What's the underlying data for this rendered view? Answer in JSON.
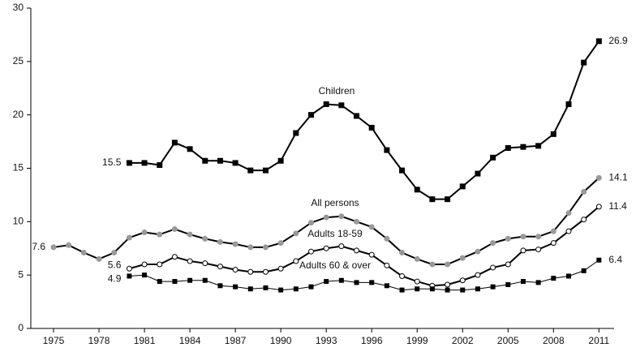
{
  "chart_data": {
    "type": "line",
    "x": [
      1975,
      1976,
      1977,
      1978,
      1979,
      1980,
      1981,
      1982,
      1983,
      1984,
      1985,
      1986,
      1987,
      1988,
      1989,
      1990,
      1991,
      1992,
      1993,
      1994,
      1995,
      1996,
      1997,
      1998,
      1999,
      2000,
      2001,
      2002,
      2003,
      2004,
      2005,
      2006,
      2007,
      2008,
      2009,
      2010,
      2011
    ],
    "xlim": [
      1973.5,
      2012
    ],
    "xticks": [
      1975,
      1978,
      1981,
      1984,
      1987,
      1990,
      1993,
      1996,
      1999,
      2002,
      2005,
      2008,
      2011
    ],
    "ylim": [
      0,
      30
    ],
    "yticks": [
      0,
      5,
      10,
      15,
      20,
      25,
      30
    ],
    "series": [
      {
        "name": "Children",
        "color": "#000000",
        "marker": "square",
        "values": [
          null,
          null,
          null,
          null,
          null,
          15.5,
          15.5,
          15.3,
          17.4,
          16.8,
          15.7,
          15.7,
          15.5,
          14.8,
          14.8,
          15.7,
          18.3,
          20.0,
          21.0,
          20.9,
          19.9,
          18.8,
          16.7,
          14.8,
          13.0,
          12.1,
          12.1,
          13.3,
          14.5,
          16.0,
          16.9,
          17.0,
          17.1,
          18.2,
          21.0,
          24.9,
          26.9
        ]
      },
      {
        "name": "All persons",
        "color": "#999999",
        "marker": "circle",
        "values": [
          7.6,
          7.8,
          7.1,
          6.5,
          7.1,
          8.5,
          9.0,
          8.8,
          9.3,
          8.8,
          8.4,
          8.1,
          7.9,
          7.6,
          7.6,
          8.0,
          8.9,
          9.9,
          10.4,
          10.5,
          10.0,
          9.5,
          8.4,
          7.1,
          6.5,
          6.0,
          6.0,
          6.6,
          7.2,
          8.0,
          8.4,
          8.6,
          8.6,
          9.1,
          10.8,
          12.8,
          14.1
        ]
      },
      {
        "name": "Adults 18-59",
        "color": "#ffffff",
        "marker": "circle",
        "values": [
          null,
          null,
          null,
          null,
          null,
          5.6,
          6.0,
          6.0,
          6.7,
          6.3,
          6.1,
          5.8,
          5.5,
          5.3,
          5.3,
          5.6,
          6.3,
          7.2,
          7.5,
          7.7,
          7.3,
          6.9,
          5.9,
          4.9,
          4.4,
          4.0,
          4.1,
          4.5,
          5.0,
          5.7,
          6.0,
          7.3,
          7.4,
          8.0,
          9.1,
          10.2,
          11.4
        ]
      },
      {
        "name": "Adults 60 & over",
        "color": "#000000",
        "marker": "small-square",
        "values": [
          null,
          null,
          null,
          null,
          null,
          4.9,
          5.0,
          4.4,
          4.4,
          4.5,
          4.5,
          4.0,
          3.9,
          3.7,
          3.8,
          3.6,
          3.7,
          3.9,
          4.4,
          4.5,
          4.3,
          4.3,
          4.0,
          3.6,
          3.7,
          3.7,
          3.6,
          3.6,
          3.7,
          3.9,
          4.1,
          4.4,
          4.3,
          4.7,
          4.9,
          5.4,
          6.4
        ]
      }
    ]
  }
}
